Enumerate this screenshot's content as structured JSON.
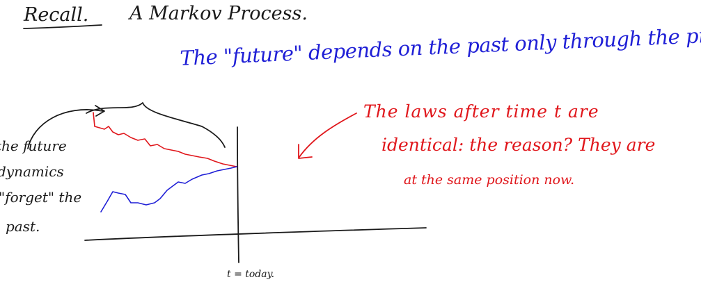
{
  "heading": {
    "recall": "Recall.",
    "title": "A Markov Process."
  },
  "statement": "The \"future\" depends on the past only through the present",
  "left_note": {
    "line1": "the future",
    "line2": "dynamics",
    "line3": "\"forget\" the",
    "line4": "past."
  },
  "right_note": {
    "line1": "The laws after time t are",
    "line2": "identical: the reason? They are",
    "line3": "at the same position now."
  },
  "axis_label": "t = today.",
  "colors": {
    "ink": "#1a1a1a",
    "blue": "#1f1fd6",
    "red": "#e0161b"
  }
}
